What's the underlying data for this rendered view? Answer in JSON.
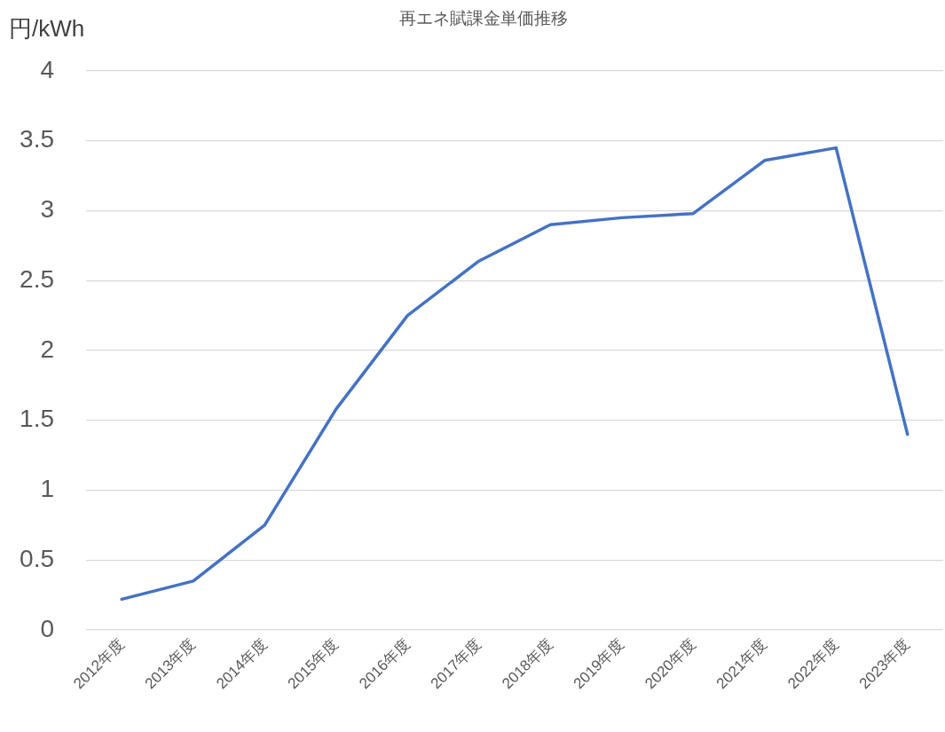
{
  "chart_data": {
    "type": "line",
    "title": "再エネ賦課金単価推移",
    "ylabel": "円/kWh",
    "categories": [
      "2012年度",
      "2013年度",
      "2014年度",
      "2015年度",
      "2016年度",
      "2017年度",
      "2018年度",
      "2019年度",
      "2020年度",
      "2021年度",
      "2022年度",
      "2023年度"
    ],
    "series": [
      {
        "color": "#4472c4",
        "values": [
          0.22,
          0.35,
          0.75,
          1.58,
          2.25,
          2.64,
          2.9,
          2.95,
          2.98,
          3.36,
          3.45,
          1.4
        ]
      }
    ],
    "ylim": [
      0,
      4
    ],
    "yticks": [
      0,
      0.5,
      1,
      1.5,
      2,
      2.5,
      3,
      3.5,
      4
    ],
    "grid": "y",
    "marker": "none",
    "line_style": "solid"
  }
}
